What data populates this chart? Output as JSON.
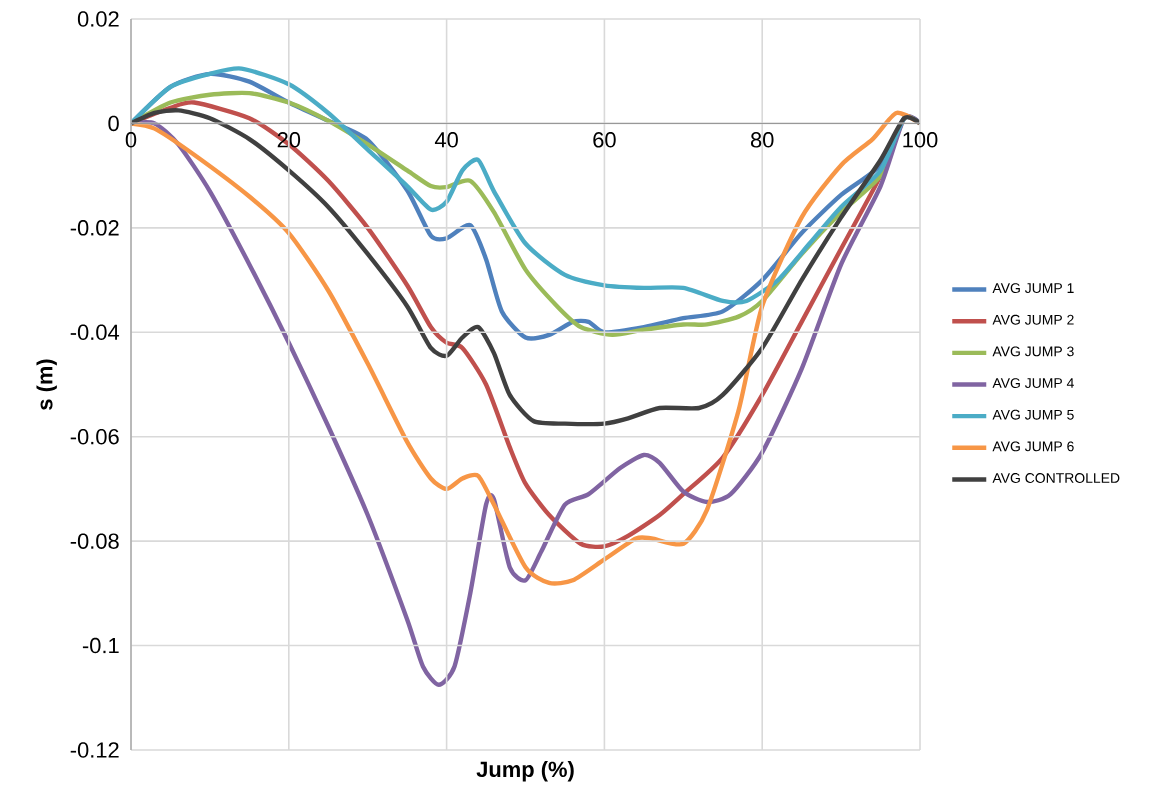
{
  "chart_data": {
    "type": "line",
    "xlabel": "Jump (%)",
    "ylabel": "s (m)",
    "xlim": [
      0,
      100
    ],
    "ylim": [
      -0.12,
      0.02
    ],
    "xticks": [
      0,
      20,
      40,
      60,
      80,
      100
    ],
    "yticks": [
      0.02,
      0,
      -0.02,
      -0.04,
      -0.06,
      -0.08,
      -0.1,
      -0.12
    ],
    "grid": true,
    "legend": "right",
    "marker": "none",
    "line_style": "solid",
    "series": [
      {
        "name": "AVG JUMP 1",
        "color": "#4f81bd",
        "x": [
          0,
          5,
          10,
          15,
          20,
          25,
          30,
          35,
          38,
          40,
          43,
          45,
          47,
          50,
          53,
          56,
          58,
          60,
          65,
          70,
          75,
          80,
          85,
          90,
          95,
          98,
          100
        ],
        "values": [
          0,
          0.007,
          0.0095,
          0.008,
          0.004,
          0.0005,
          -0.0032,
          -0.0128,
          -0.0215,
          -0.022,
          -0.0195,
          -0.026,
          -0.036,
          -0.041,
          -0.0405,
          -0.038,
          -0.038,
          -0.04,
          -0.039,
          -0.0373,
          -0.036,
          -0.03,
          -0.021,
          -0.0137,
          -0.008,
          0.001,
          0
        ]
      },
      {
        "name": "AVG JUMP 2",
        "color": "#c0504d",
        "x": [
          0,
          5,
          8,
          15,
          20,
          25,
          30,
          35,
          38,
          40,
          42,
          45,
          48,
          50,
          53,
          57,
          60,
          63,
          67,
          70,
          75,
          80,
          85,
          90,
          95,
          98,
          100
        ],
        "values": [
          0,
          0.003,
          0.004,
          0.001,
          -0.004,
          -0.011,
          -0.02,
          -0.031,
          -0.039,
          -0.042,
          -0.043,
          -0.05,
          -0.062,
          -0.069,
          -0.075,
          -0.0805,
          -0.081,
          -0.079,
          -0.075,
          -0.071,
          -0.064,
          -0.052,
          -0.038,
          -0.024,
          -0.01,
          0.001,
          0
        ]
      },
      {
        "name": "AVG JUMP 3",
        "color": "#9bbb59",
        "x": [
          0,
          5,
          10,
          15,
          20,
          25,
          30,
          35,
          38,
          40,
          43,
          46,
          50,
          54,
          57,
          61,
          65,
          70,
          73,
          77,
          80,
          85,
          90,
          95,
          98,
          100
        ],
        "values": [
          0,
          0.004,
          0.0055,
          0.0058,
          0.004,
          0.0005,
          -0.004,
          -0.009,
          -0.012,
          -0.0122,
          -0.011,
          -0.017,
          -0.028,
          -0.035,
          -0.039,
          -0.0405,
          -0.0395,
          -0.0385,
          -0.0385,
          -0.037,
          -0.034,
          -0.025,
          -0.017,
          -0.01,
          0.001,
          0
        ]
      },
      {
        "name": "AVG JUMP 4",
        "color": "#8064a2",
        "x": [
          0,
          3,
          6,
          10,
          15,
          20,
          25,
          30,
          35,
          37,
          39,
          41,
          43,
          45,
          46,
          48,
          50,
          52,
          55,
          58,
          62,
          65,
          67,
          70,
          73,
          76,
          80,
          85,
          90,
          95,
          98,
          100
        ],
        "values": [
          0,
          0,
          -0.004,
          -0.013,
          -0.027,
          -0.042,
          -0.058,
          -0.075,
          -0.095,
          -0.104,
          -0.1075,
          -0.104,
          -0.09,
          -0.073,
          -0.072,
          -0.085,
          -0.0875,
          -0.082,
          -0.073,
          -0.071,
          -0.066,
          -0.0635,
          -0.065,
          -0.0705,
          -0.0725,
          -0.071,
          -0.063,
          -0.047,
          -0.027,
          -0.012,
          0.001,
          0
        ]
      },
      {
        "name": "AVG JUMP 5",
        "color": "#4bacc6",
        "x": [
          0,
          5,
          10,
          14,
          20,
          25,
          30,
          35,
          38,
          40,
          42,
          44,
          46,
          50,
          55,
          60,
          65,
          70,
          75,
          78,
          82,
          86,
          90,
          95,
          98,
          100
        ],
        "values": [
          0,
          0.007,
          0.0095,
          0.0105,
          0.0075,
          0.002,
          -0.005,
          -0.012,
          -0.0165,
          -0.015,
          -0.009,
          -0.007,
          -0.013,
          -0.023,
          -0.029,
          -0.031,
          -0.0315,
          -0.0315,
          -0.034,
          -0.034,
          -0.03,
          -0.023,
          -0.016,
          -0.009,
          0.001,
          0
        ]
      },
      {
        "name": "AVG JUMP 6",
        "color": "#f79646",
        "x": [
          0,
          3,
          8,
          15,
          20,
          25,
          30,
          35,
          38,
          40,
          42,
          44,
          46,
          50,
          53,
          56,
          60,
          64,
          66,
          70,
          73,
          77,
          80,
          85,
          90,
          94,
          97,
          100
        ],
        "values": [
          0,
          -0.001,
          -0.006,
          -0.014,
          -0.021,
          -0.032,
          -0.046,
          -0.061,
          -0.068,
          -0.07,
          -0.068,
          -0.0675,
          -0.073,
          -0.085,
          -0.088,
          -0.0875,
          -0.0835,
          -0.0795,
          -0.0795,
          -0.0805,
          -0.074,
          -0.055,
          -0.035,
          -0.018,
          -0.008,
          -0.003,
          0.002,
          0
        ]
      },
      {
        "name": "AVG CONTROLLED",
        "color": "#404040",
        "x": [
          0,
          3,
          6,
          10,
          15,
          20,
          25,
          30,
          35,
          38,
          40,
          42,
          44,
          46,
          48,
          51,
          55,
          60,
          63,
          67,
          72,
          75,
          80,
          85,
          90,
          95,
          98,
          100
        ],
        "values": [
          0,
          0.002,
          0.0025,
          0.001,
          -0.003,
          -0.009,
          -0.016,
          -0.025,
          -0.035,
          -0.043,
          -0.0445,
          -0.041,
          -0.039,
          -0.044,
          -0.052,
          -0.057,
          -0.0575,
          -0.0575,
          -0.0565,
          -0.0545,
          -0.0545,
          -0.052,
          -0.043,
          -0.03,
          -0.018,
          -0.007,
          0.001,
          0
        ]
      }
    ]
  }
}
